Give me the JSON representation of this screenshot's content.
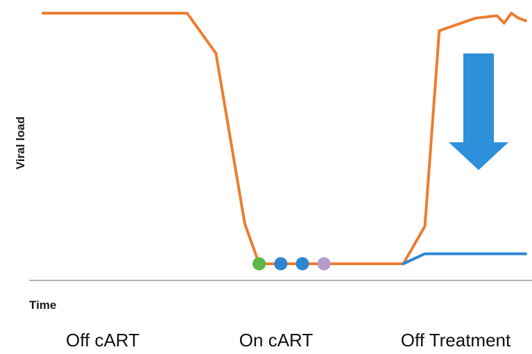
{
  "chart_data": {
    "type": "line",
    "title": "",
    "xlabel": "Time",
    "ylabel": "Viral load",
    "x_categories": [
      "Off cART",
      "On cART",
      "Off Treatment"
    ],
    "x": [
      0,
      10,
      20,
      24,
      28,
      30,
      33,
      40,
      45,
      48,
      50,
      53,
      55,
      60,
      63,
      64,
      65,
      66,
      67
    ],
    "series": [
      {
        "values": [
          100,
          100,
          100,
          84,
          16,
          0,
          0,
          0,
          0,
          0,
          0,
          15,
          93,
          98,
          99,
          96,
          100,
          98,
          97
        ],
        "color": "#ED7D31"
      },
      {
        "values": [
          null,
          null,
          null,
          null,
          null,
          null,
          null,
          null,
          null,
          null,
          0,
          4,
          4,
          4,
          4,
          4,
          4,
          4,
          4
        ],
        "color": "#2E86D1"
      }
    ],
    "markers": [
      {
        "x": 30,
        "y": 0,
        "color": "#5BB646"
      },
      {
        "x": 33,
        "y": 0,
        "color": "#2E86D1"
      },
      {
        "x": 36,
        "y": 0,
        "color": "#2E86D1"
      },
      {
        "x": 39,
        "y": 0,
        "color": "#B49ACB"
      }
    ],
    "annotations": [
      {
        "type": "arrow",
        "direction": "down",
        "color": "#2E8FDB"
      }
    ],
    "ylim": [
      0,
      100
    ],
    "grid": false,
    "legend": "none"
  }
}
